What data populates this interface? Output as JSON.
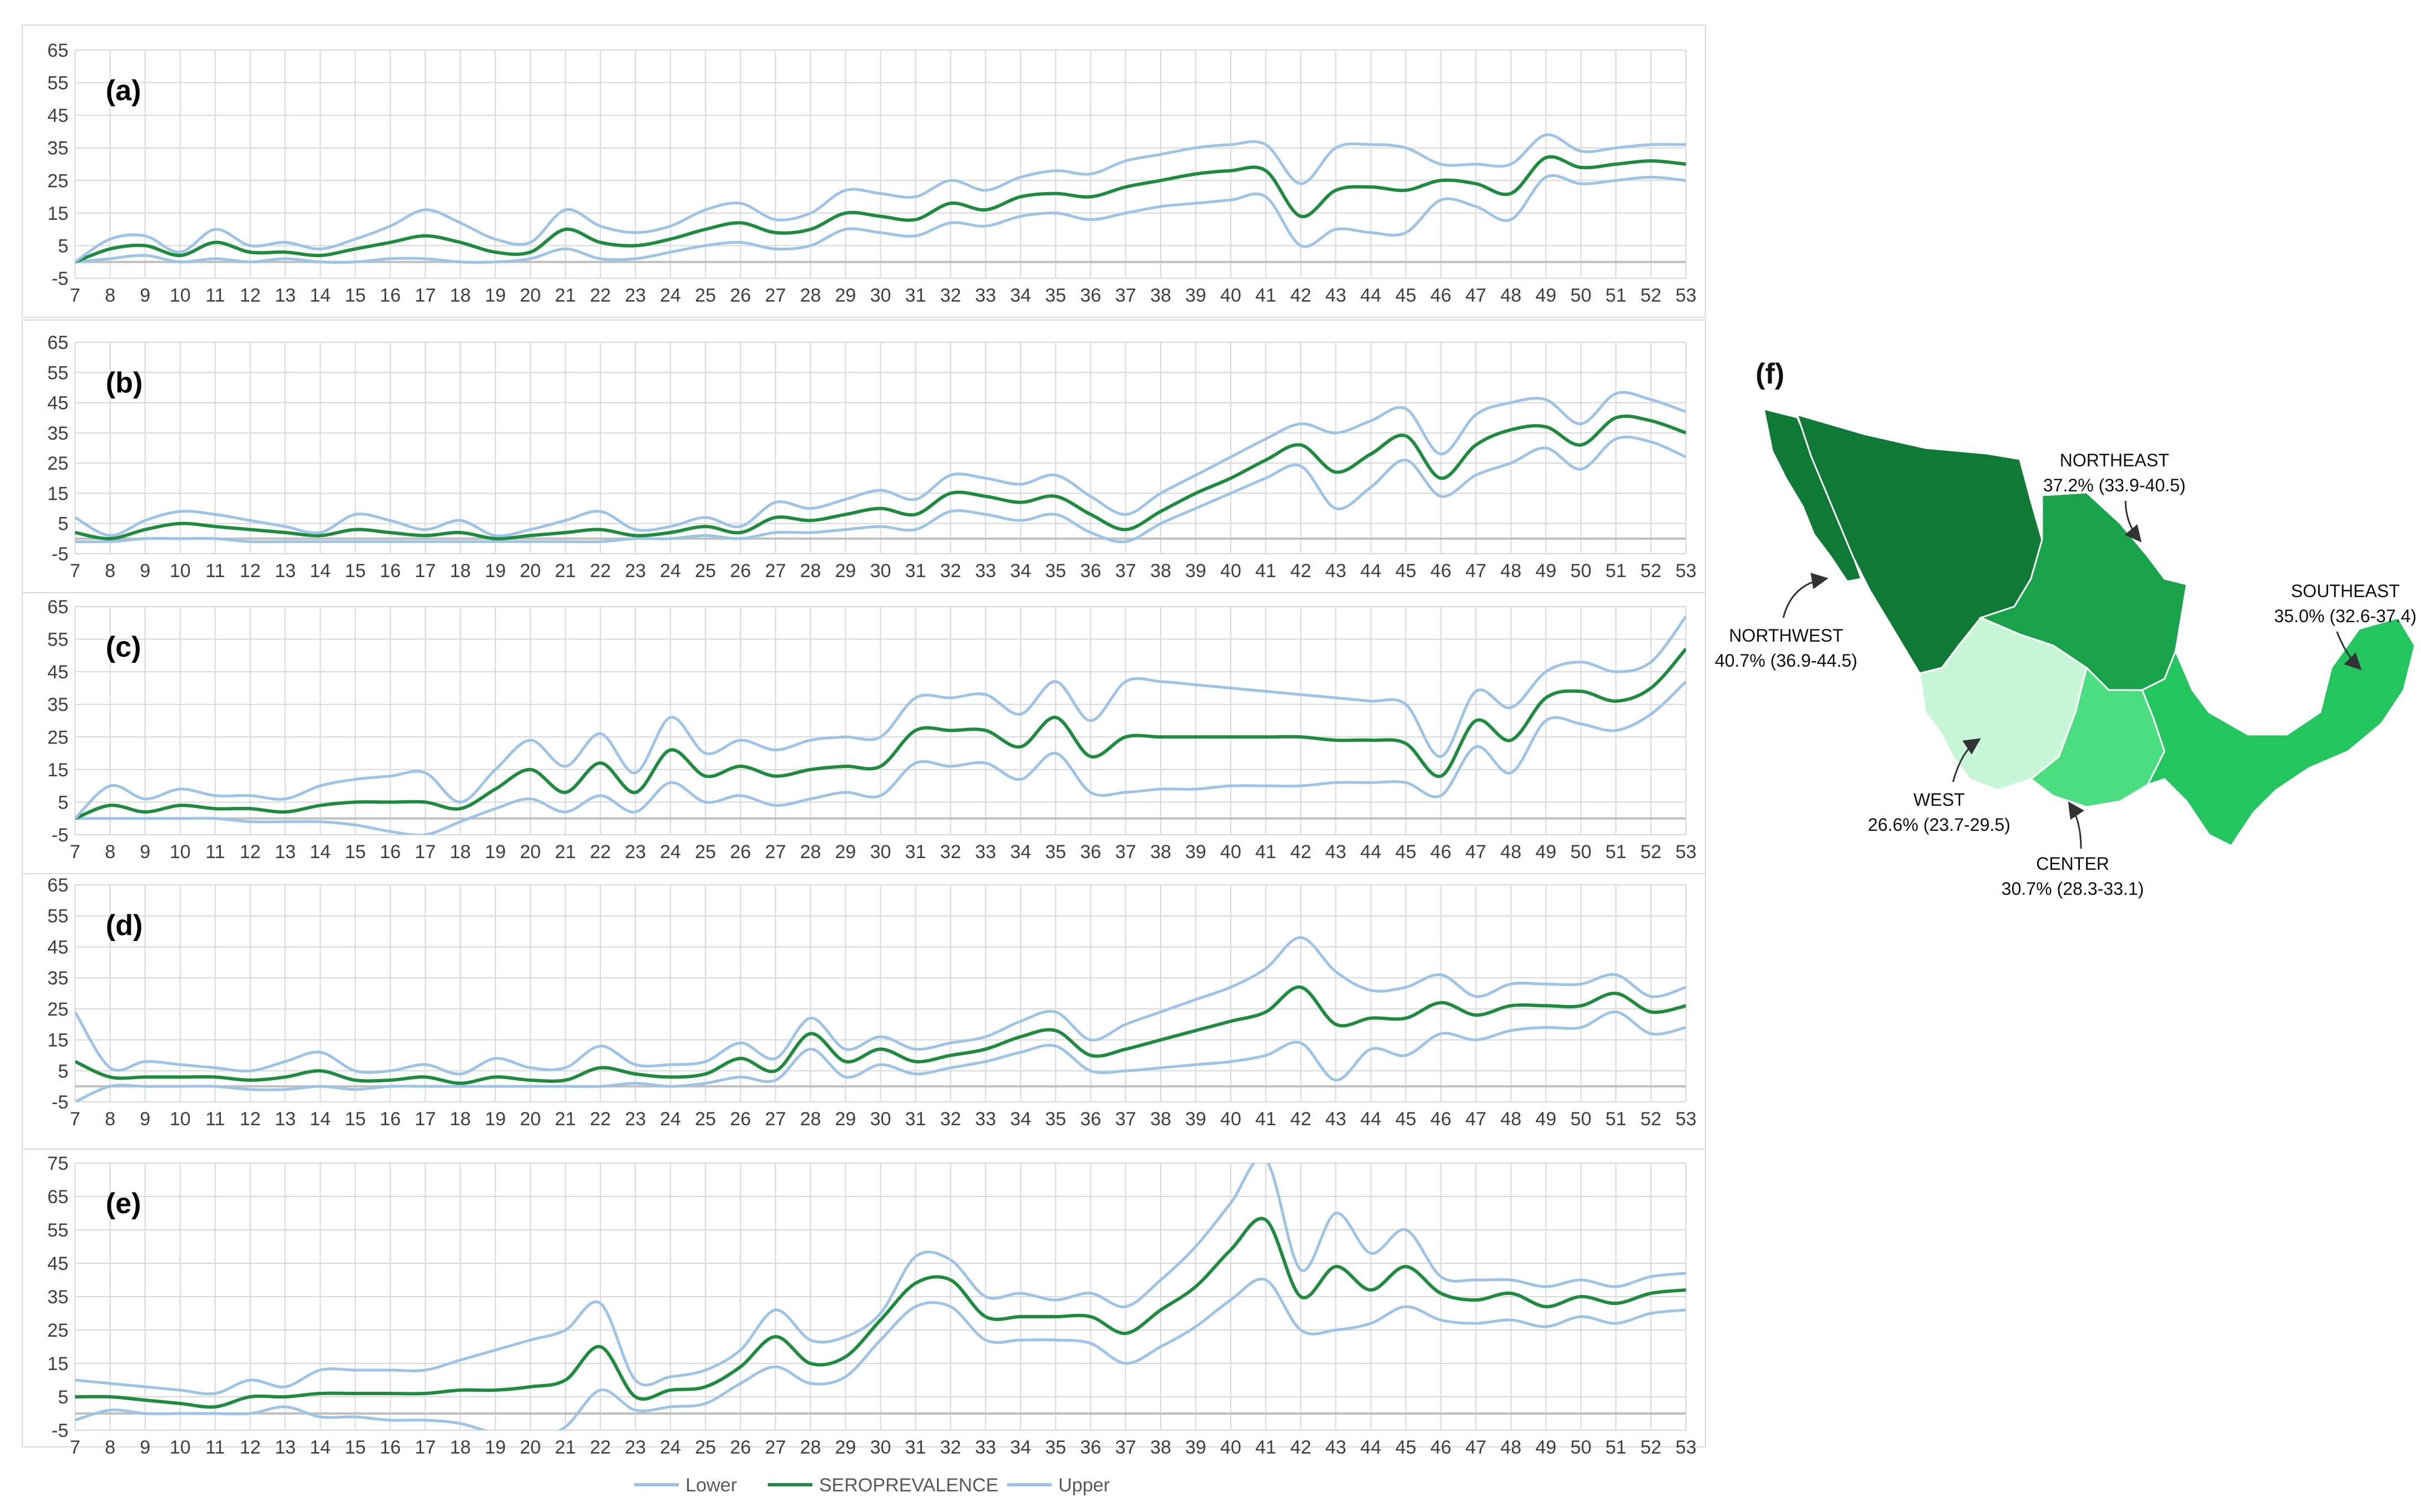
{
  "chart_data": [
    {
      "panel_label": "(a)",
      "type": "line",
      "x": [
        7,
        8,
        9,
        10,
        11,
        12,
        13,
        14,
        15,
        16,
        17,
        18,
        19,
        20,
        21,
        22,
        23,
        24,
        25,
        26,
        27,
        28,
        29,
        30,
        31,
        32,
        33,
        34,
        35,
        36,
        37,
        38,
        39,
        40,
        41,
        42,
        43,
        44,
        45,
        46,
        47,
        48,
        49,
        50,
        51,
        52,
        53
      ],
      "yticks": [
        -5,
        5,
        15,
        25,
        35,
        45,
        55,
        65
      ],
      "ylim": [
        -5,
        65
      ],
      "series": [
        {
          "name": "Lower",
          "values": [
            0,
            1,
            2,
            0,
            1,
            0,
            1,
            0,
            0,
            1,
            1,
            0,
            0,
            1,
            4,
            1,
            1,
            3,
            5,
            6,
            4,
            5,
            10,
            9,
            8,
            12,
            11,
            14,
            15,
            13,
            15,
            17,
            18,
            19,
            20,
            5,
            10,
            9,
            9,
            19,
            17,
            13,
            26,
            24,
            25,
            26,
            25
          ]
        },
        {
          "name": "SEROPREVALENCE",
          "values": [
            0,
            4,
            5,
            2,
            6,
            3,
            3,
            2,
            4,
            6,
            8,
            6,
            3,
            3,
            10,
            6,
            5,
            7,
            10,
            12,
            9,
            10,
            15,
            14,
            13,
            18,
            16,
            20,
            21,
            20,
            23,
            25,
            27,
            28,
            28,
            14,
            22,
            23,
            22,
            25,
            24,
            21,
            32,
            29,
            30,
            31,
            30
          ]
        },
        {
          "name": "Upper",
          "values": [
            0,
            7,
            8,
            3,
            10,
            5,
            6,
            4,
            7,
            11,
            16,
            12,
            7,
            6,
            16,
            11,
            9,
            11,
            16,
            18,
            13,
            15,
            22,
            21,
            20,
            25,
            22,
            26,
            28,
            27,
            31,
            33,
            35,
            36,
            36,
            24,
            35,
            36,
            35,
            30,
            30,
            30,
            39,
            34,
            35,
            36,
            36
          ]
        }
      ]
    },
    {
      "panel_label": "(b)",
      "type": "line",
      "x": [
        7,
        8,
        9,
        10,
        11,
        12,
        13,
        14,
        15,
        16,
        17,
        18,
        19,
        20,
        21,
        22,
        23,
        24,
        25,
        26,
        27,
        28,
        29,
        30,
        31,
        32,
        33,
        34,
        35,
        36,
        37,
        38,
        39,
        40,
        41,
        42,
        43,
        44,
        45,
        46,
        47,
        48,
        49,
        50,
        51,
        52,
        53
      ],
      "yticks": [
        -5,
        5,
        15,
        25,
        35,
        45,
        55,
        65
      ],
      "ylim": [
        -5,
        65
      ],
      "series": [
        {
          "name": "Lower",
          "values": [
            -1,
            -1,
            0,
            0,
            0,
            -1,
            -1,
            -1,
            -1,
            -1,
            -1,
            -1,
            -1,
            -1,
            -1,
            -1,
            0,
            0,
            1,
            0,
            2,
            2,
            3,
            4,
            3,
            9,
            8,
            6,
            8,
            2,
            -1,
            5,
            10,
            15,
            20,
            24,
            10,
            17,
            26,
            14,
            21,
            25,
            30,
            23,
            33,
            32,
            27
          ]
        },
        {
          "name": "SEROPREVALENCE",
          "values": [
            2,
            0,
            3,
            5,
            4,
            3,
            2,
            1,
            3,
            2,
            1,
            2,
            0,
            1,
            2,
            3,
            1,
            2,
            4,
            2,
            7,
            6,
            8,
            10,
            8,
            15,
            14,
            12,
            14,
            8,
            3,
            9,
            15,
            20,
            26,
            31,
            22,
            28,
            34,
            20,
            31,
            36,
            37,
            31,
            40,
            39,
            35
          ]
        },
        {
          "name": "Upper",
          "values": [
            7,
            1,
            6,
            9,
            8,
            6,
            4,
            2,
            8,
            6,
            3,
            6,
            1,
            3,
            6,
            9,
            3,
            4,
            7,
            4,
            12,
            10,
            13,
            16,
            13,
            21,
            20,
            18,
            21,
            14,
            8,
            15,
            21,
            27,
            33,
            38,
            35,
            39,
            43,
            28,
            41,
            45,
            46,
            38,
            48,
            46,
            42
          ]
        }
      ]
    },
    {
      "panel_label": "(c)",
      "type": "line",
      "x": [
        7,
        8,
        9,
        10,
        11,
        12,
        13,
        14,
        15,
        16,
        17,
        18,
        19,
        20,
        21,
        22,
        23,
        24,
        25,
        26,
        27,
        28,
        29,
        30,
        31,
        32,
        33,
        34,
        35,
        36,
        37,
        38,
        39,
        40,
        41,
        42,
        43,
        44,
        45,
        46,
        47,
        48,
        49,
        50,
        51,
        52,
        53
      ],
      "yticks": [
        -5,
        5,
        15,
        25,
        35,
        45,
        55,
        65
      ],
      "ylim": [
        -5,
        65
      ],
      "series": [
        {
          "name": "Lower",
          "values": [
            0,
            0,
            0,
            0,
            0,
            -1,
            -1,
            -1,
            -2,
            -4,
            -5,
            -1,
            3,
            6,
            2,
            7,
            2,
            11,
            5,
            7,
            4,
            6,
            8,
            7,
            17,
            16,
            17,
            12,
            20,
            8,
            8,
            9,
            9,
            10,
            10,
            10,
            11,
            11,
            11,
            7,
            22,
            14,
            30,
            29,
            27,
            32,
            42
          ]
        },
        {
          "name": "SEROPREVALENCE",
          "values": [
            0,
            4,
            2,
            4,
            3,
            3,
            2,
            4,
            5,
            5,
            5,
            3,
            9,
            15,
            8,
            17,
            8,
            21,
            13,
            16,
            13,
            15,
            16,
            16,
            27,
            27,
            27,
            22,
            31,
            19,
            25,
            25,
            25,
            25,
            25,
            25,
            24,
            24,
            23,
            13,
            30,
            24,
            37,
            39,
            36,
            40,
            52
          ]
        },
        {
          "name": "Upper",
          "values": [
            0,
            10,
            6,
            9,
            7,
            7,
            6,
            10,
            12,
            13,
            14,
            5,
            15,
            24,
            16,
            26,
            14,
            31,
            20,
            24,
            21,
            24,
            25,
            25,
            37,
            37,
            38,
            32,
            42,
            30,
            42,
            42,
            41,
            40,
            39,
            38,
            37,
            36,
            35,
            19,
            39,
            34,
            45,
            48,
            45,
            48,
            62
          ]
        }
      ]
    },
    {
      "panel_label": "(d)",
      "type": "line",
      "x": [
        7,
        8,
        9,
        10,
        11,
        12,
        13,
        14,
        15,
        16,
        17,
        18,
        19,
        20,
        21,
        22,
        23,
        24,
        25,
        26,
        27,
        28,
        29,
        30,
        31,
        32,
        33,
        34,
        35,
        36,
        37,
        38,
        39,
        40,
        41,
        42,
        43,
        44,
        45,
        46,
        47,
        48,
        49,
        50,
        51,
        52,
        53
      ],
      "yticks": [
        -5,
        5,
        15,
        25,
        35,
        45,
        55,
        65
      ],
      "ylim": [
        -5,
        65
      ],
      "series": [
        {
          "name": "Lower",
          "values": [
            -5,
            0,
            0,
            0,
            0,
            -1,
            -1,
            0,
            -1,
            0,
            0,
            0,
            0,
            0,
            0,
            0,
            1,
            0,
            1,
            3,
            2,
            12,
            3,
            7,
            4,
            6,
            8,
            11,
            13,
            5,
            5,
            6,
            7,
            8,
            10,
            14,
            2,
            12,
            10,
            17,
            15,
            18,
            19,
            19,
            24,
            17,
            19
          ]
        },
        {
          "name": "SEROPREVALENCE",
          "values": [
            8,
            3,
            3,
            3,
            3,
            2,
            3,
            5,
            2,
            2,
            3,
            1,
            3,
            2,
            2,
            6,
            4,
            3,
            4,
            9,
            5,
            17,
            8,
            12,
            8,
            10,
            12,
            16,
            18,
            10,
            12,
            15,
            18,
            21,
            24,
            32,
            20,
            22,
            22,
            27,
            23,
            26,
            26,
            26,
            30,
            24,
            26
          ]
        },
        {
          "name": "Upper",
          "values": [
            24,
            6,
            8,
            7,
            6,
            5,
            8,
            11,
            5,
            5,
            7,
            4,
            9,
            6,
            6,
            13,
            7,
            7,
            8,
            14,
            9,
            22,
            12,
            16,
            12,
            14,
            16,
            21,
            24,
            15,
            20,
            24,
            28,
            32,
            38,
            48,
            37,
            31,
            32,
            36,
            29,
            33,
            33,
            33,
            36,
            29,
            32
          ]
        }
      ]
    },
    {
      "panel_label": "(e)",
      "type": "line",
      "x": [
        7,
        8,
        9,
        10,
        11,
        12,
        13,
        14,
        15,
        16,
        17,
        18,
        19,
        20,
        21,
        22,
        23,
        24,
        25,
        26,
        27,
        28,
        29,
        30,
        31,
        32,
        33,
        34,
        35,
        36,
        37,
        38,
        39,
        40,
        41,
        42,
        43,
        44,
        45,
        46,
        47,
        48,
        49,
        50,
        51,
        52,
        53
      ],
      "yticks": [
        -5,
        5,
        15,
        25,
        35,
        45,
        55,
        65,
        75
      ],
      "ylim": [
        -5,
        75
      ],
      "series": [
        {
          "name": "Lower",
          "values": [
            -2,
            1,
            0,
            0,
            0,
            0,
            2,
            -1,
            -1,
            -2,
            -2,
            -3,
            -6,
            -8,
            -4,
            7,
            1,
            2,
            3,
            9,
            14,
            9,
            11,
            22,
            32,
            32,
            22,
            22,
            22,
            21,
            15,
            20,
            26,
            34,
            40,
            25,
            25,
            27,
            32,
            28,
            27,
            28,
            26,
            29,
            27,
            30,
            31
          ]
        },
        {
          "name": "SEROPREVALENCE",
          "values": [
            5,
            5,
            4,
            3,
            2,
            5,
            5,
            6,
            6,
            6,
            6,
            7,
            7,
            8,
            10,
            20,
            5,
            7,
            8,
            14,
            23,
            15,
            17,
            28,
            39,
            40,
            29,
            29,
            29,
            29,
            24,
            31,
            38,
            49,
            58,
            35,
            44,
            37,
            44,
            36,
            34,
            36,
            32,
            35,
            33,
            36,
            37
          ]
        },
        {
          "name": "Upper",
          "values": [
            10,
            9,
            8,
            7,
            6,
            10,
            8,
            13,
            13,
            13,
            13,
            16,
            19,
            22,
            25,
            33,
            10,
            11,
            13,
            19,
            31,
            22,
            23,
            30,
            47,
            46,
            35,
            36,
            34,
            36,
            32,
            40,
            50,
            63,
            76,
            43,
            60,
            48,
            55,
            41,
            40,
            40,
            38,
            40,
            38,
            41,
            42
          ]
        }
      ]
    }
  ],
  "legend": {
    "lower": "Lower",
    "sero": "SEROPREVALENCE",
    "upper": "Upper"
  },
  "colors": {
    "sero": "#1e8b3e",
    "bounds": "#9dc3e6",
    "grid": "#d9d9d9"
  },
  "map": {
    "panel_label": "(f)",
    "regions": [
      {
        "name": "NORTHEAST",
        "value": "37.2% (33.9-40.5)",
        "fill": "#19a34a"
      },
      {
        "name": "NORTHWEST",
        "value": "40.7% (36.9-44.5)",
        "fill": "#0e7a36"
      },
      {
        "name": "SOUTHEAST",
        "value": "35.0% (32.6-37.4)",
        "fill": "#22c55e"
      },
      {
        "name": "WEST",
        "value": "26.6% (23.7-29.5)",
        "fill": "#c8f7d8"
      },
      {
        "name": "CENTER",
        "value": "30.7% (28.3-33.1)",
        "fill": "#4ade80"
      }
    ]
  }
}
